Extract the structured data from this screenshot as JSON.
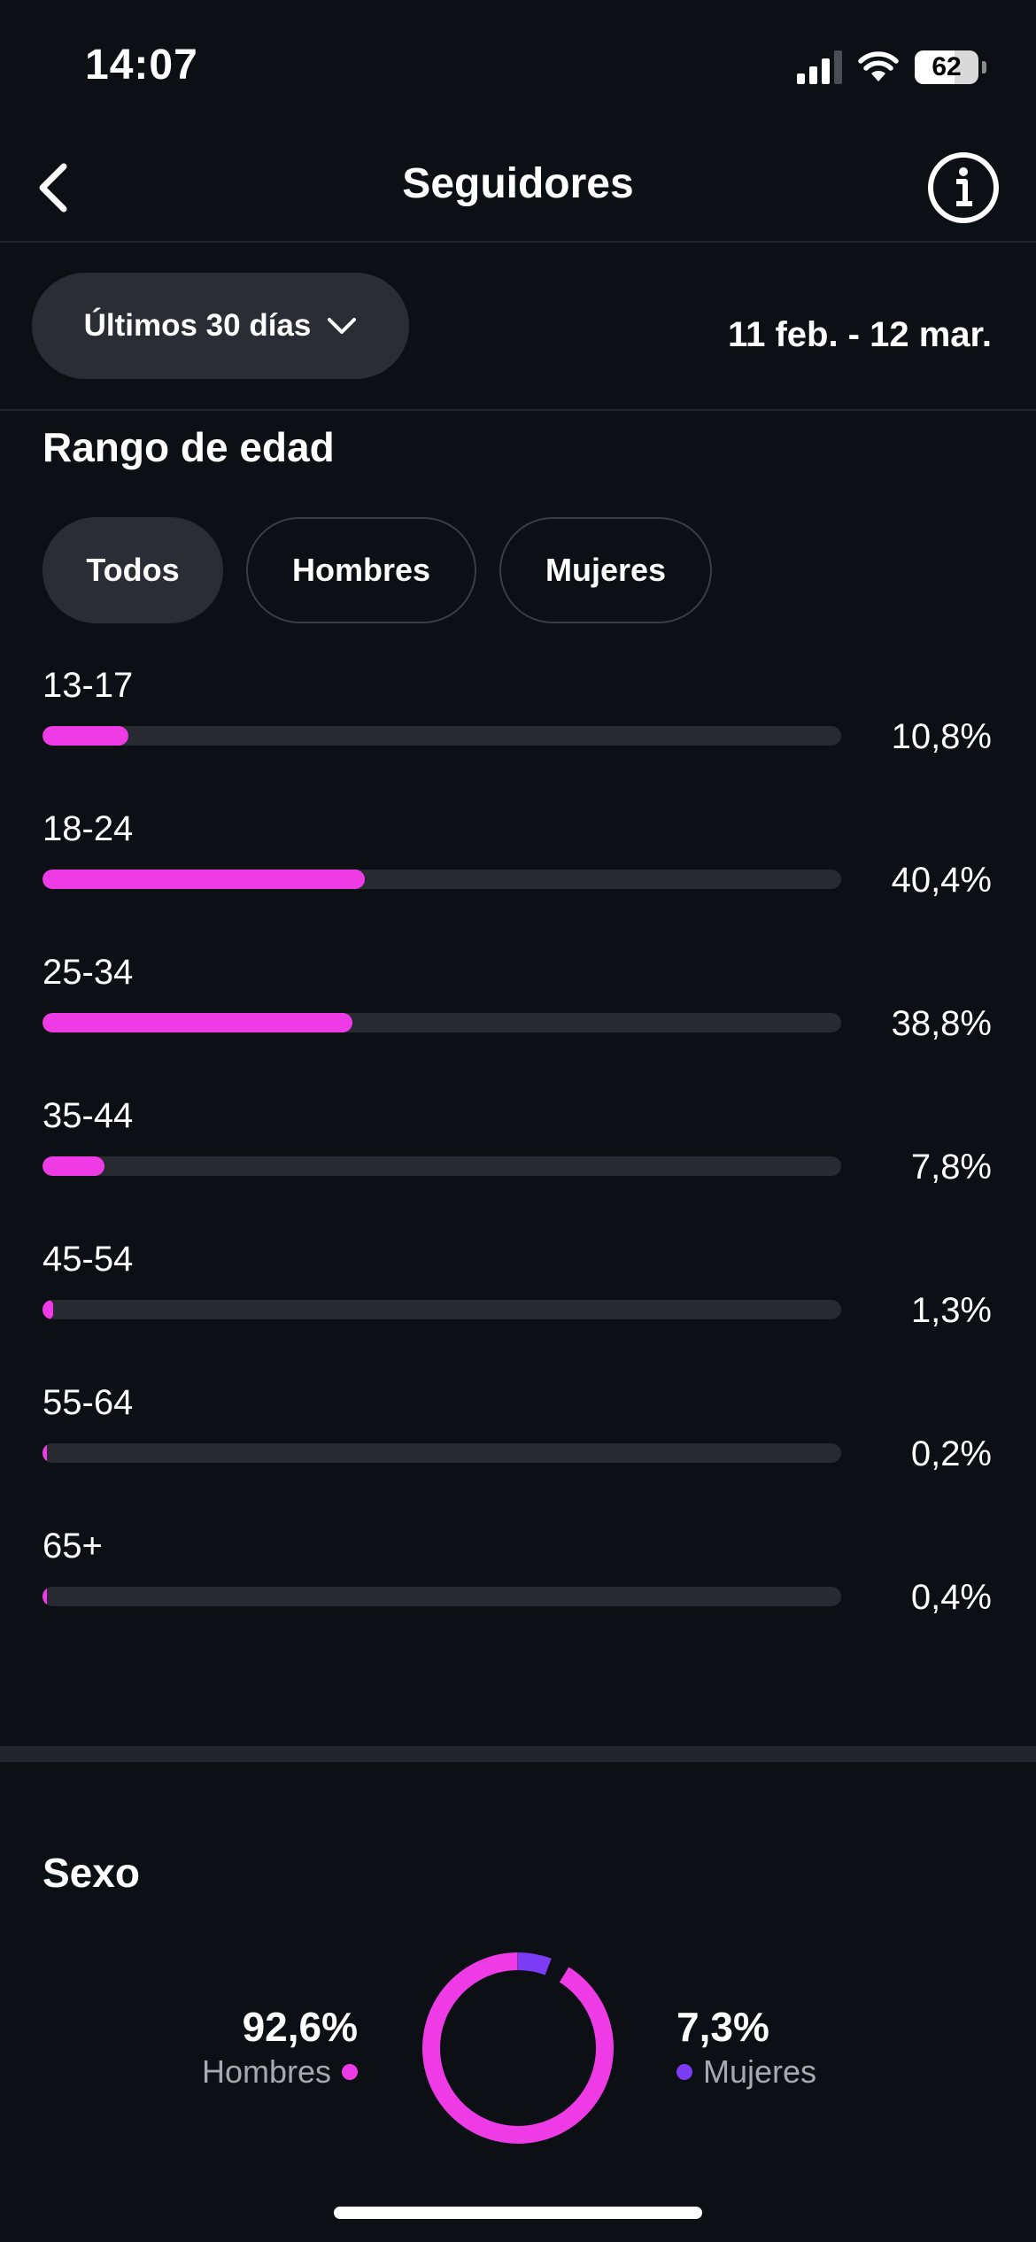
{
  "status_bar": {
    "time": "14:07",
    "battery": "62",
    "battery_level": 0.62
  },
  "nav": {
    "title": "Seguidores",
    "back_icon": "chevron-left-icon",
    "info_icon": "info-icon"
  },
  "filters": {
    "range_label": "Últimos 30 días",
    "date_range": "11 feb. - 12 mar."
  },
  "age_section": {
    "title": "Rango de edad",
    "tabs": [
      {
        "label": "Todos",
        "active": true
      },
      {
        "label": "Hombres",
        "active": false
      },
      {
        "label": "Mujeres",
        "active": false
      }
    ],
    "rows": [
      {
        "label": "13-17",
        "value": "10,8%",
        "percent": 10.8
      },
      {
        "label": "18-24",
        "value": "40,4%",
        "percent": 40.4
      },
      {
        "label": "25-34",
        "value": "38,8%",
        "percent": 38.8
      },
      {
        "label": "35-44",
        "value": "7,8%",
        "percent": 7.8
      },
      {
        "label": "45-54",
        "value": "1,3%",
        "percent": 1.3
      },
      {
        "label": "55-64",
        "value": "0,2%",
        "percent": 0.2
      },
      {
        "label": "65+",
        "value": "0,4%",
        "percent": 0.4
      }
    ]
  },
  "gender_section": {
    "title": "Sexo",
    "men": {
      "value": "92,6%",
      "label": "Hombres",
      "percent": 92.6
    },
    "women": {
      "value": "7,3%",
      "label": "Mujeres",
      "percent": 7.3
    }
  },
  "colors": {
    "accent_pink": "#ee3be6",
    "accent_purple": "#7c3cf5",
    "track": "#272a30",
    "background": "#0c0f14"
  }
}
